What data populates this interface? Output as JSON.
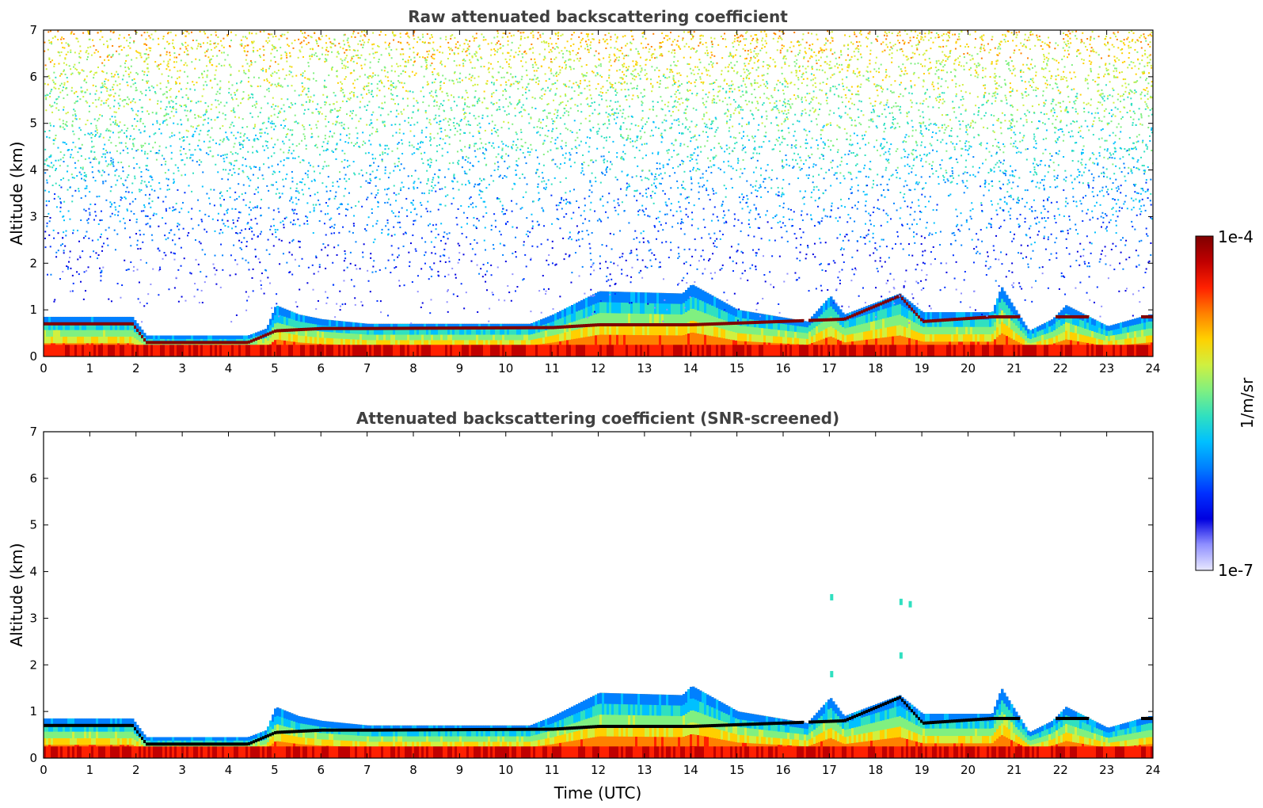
{
  "chart_data": [
    {
      "type": "heatmap",
      "title": "Raw attenuated backscattering coefficient",
      "xlabel": "",
      "ylabel": "Altitude (km)",
      "xlim": [
        0,
        24
      ],
      "ylim": [
        0,
        7
      ],
      "xticks": [
        "0",
        "1",
        "2",
        "3",
        "4",
        "5",
        "6",
        "7",
        "8",
        "9",
        "10",
        "11",
        "12",
        "13",
        "14",
        "15",
        "16",
        "17",
        "18",
        "19",
        "20",
        "21",
        "22",
        "23",
        "24"
      ],
      "yticks": [
        "0",
        "1",
        "2",
        "3",
        "4",
        "5",
        "6",
        "7"
      ],
      "colorbar": {
        "label": "1/m/sr",
        "min_label": "1e-7",
        "max_label": "1e-4",
        "scale": "log"
      },
      "layer_top_km": [
        [
          0,
          0.85
        ],
        [
          1.9,
          0.85
        ],
        [
          2.2,
          0.45
        ],
        [
          4.4,
          0.45
        ],
        [
          4.8,
          0.6
        ],
        [
          5.0,
          1.1
        ],
        [
          5.5,
          0.9
        ],
        [
          6.0,
          0.8
        ],
        [
          7.0,
          0.7
        ],
        [
          10.5,
          0.7
        ],
        [
          11.0,
          0.9
        ],
        [
          12.0,
          1.4
        ],
        [
          13.8,
          1.35
        ],
        [
          14.0,
          1.55
        ],
        [
          15.0,
          1.0
        ],
        [
          16.5,
          0.75
        ],
        [
          17.0,
          1.3
        ],
        [
          17.3,
          0.9
        ],
        [
          18.5,
          1.35
        ],
        [
          19.0,
          0.95
        ],
        [
          20.5,
          0.95
        ],
        [
          20.7,
          1.5
        ],
        [
          21.3,
          0.55
        ],
        [
          21.8,
          0.8
        ],
        [
          22.1,
          1.1
        ],
        [
          23.0,
          0.65
        ],
        [
          23.9,
          0.9
        ],
        [
          24,
          0.9
        ]
      ],
      "cloud_base_km": [
        [
          0,
          0.7
        ],
        [
          1.9,
          0.7
        ],
        [
          2.2,
          0.3
        ],
        [
          4.4,
          0.3
        ],
        [
          5.0,
          0.55
        ],
        [
          6.0,
          0.6
        ],
        [
          7.0,
          0.6
        ],
        [
          11.0,
          0.62
        ],
        [
          12.0,
          0.68
        ],
        [
          14.0,
          0.68
        ],
        [
          17.3,
          0.8
        ],
        [
          18.5,
          1.3
        ],
        [
          19.0,
          0.75
        ],
        [
          20.5,
          0.85
        ]
      ],
      "noise_floor_km": 0.7
    },
    {
      "type": "heatmap",
      "title": "Attenuated backscattering coefficient (SNR-screened)",
      "xlabel": "Time (UTC)",
      "ylabel": "Altitude (km)",
      "xlim": [
        0,
        24
      ],
      "ylim": [
        0,
        7
      ],
      "xticks": [
        "0",
        "1",
        "2",
        "3",
        "4",
        "5",
        "6",
        "7",
        "8",
        "9",
        "10",
        "11",
        "12",
        "13",
        "14",
        "15",
        "16",
        "17",
        "18",
        "19",
        "20",
        "21",
        "22",
        "23",
        "24"
      ],
      "yticks": [
        "0",
        "1",
        "2",
        "3",
        "4",
        "5",
        "6",
        "7"
      ],
      "isolated_signal": [
        [
          17.05,
          3.45
        ],
        [
          17.05,
          1.8
        ],
        [
          18.55,
          3.35
        ],
        [
          18.55,
          2.2
        ],
        [
          18.75,
          3.3
        ]
      ]
    }
  ],
  "colormap": [
    "#7f0000",
    "#c00000",
    "#ff2000",
    "#ff8000",
    "#ffd000",
    "#d0f040",
    "#80f080",
    "#30e0c0",
    "#00c0ff",
    "#0080ff",
    "#0030ff",
    "#0000e0",
    "#9090ff",
    "#e8e8ff"
  ]
}
